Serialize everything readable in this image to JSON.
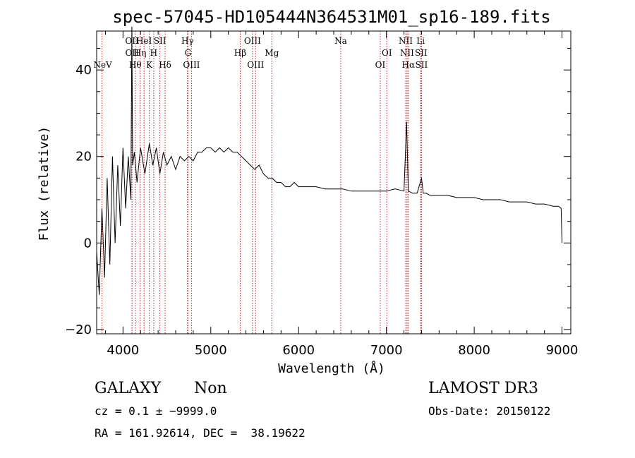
{
  "chart_data": {
    "type": "line",
    "title": "spec-57045-HD105444N364531M01_sp16-189.fits",
    "xlabel": "Wavelength (Å)",
    "ylabel": "Flux (relative)",
    "xlim": [
      3700,
      9100
    ],
    "ylim": [
      -21,
      49
    ],
    "xticks": [
      4000,
      5000,
      6000,
      7000,
      8000,
      9000
    ],
    "yticks": [
      -20,
      0,
      20,
      40
    ],
    "series": [
      {
        "name": "spectrum",
        "x": [
          3700,
          3730,
          3760,
          3790,
          3820,
          3850,
          3880,
          3910,
          3940,
          3970,
          4000,
          4030,
          4060,
          4090,
          4101,
          4110,
          4130,
          4160,
          4200,
          4250,
          4300,
          4340,
          4380,
          4420,
          4460,
          4500,
          4550,
          4600,
          4650,
          4700,
          4750,
          4800,
          4850,
          4900,
          4950,
          5000,
          5050,
          5100,
          5150,
          5200,
          5250,
          5300,
          5350,
          5400,
          5450,
          5500,
          5550,
          5600,
          5650,
          5700,
          5750,
          5800,
          5850,
          5900,
          5950,
          6000,
          6050,
          6100,
          6150,
          6200,
          6300,
          6400,
          6500,
          6600,
          6700,
          6800,
          6900,
          7000,
          7100,
          7200,
          7230,
          7250,
          7300,
          7350,
          7400,
          7420,
          7450,
          7500,
          7600,
          7700,
          7800,
          7900,
          8000,
          8100,
          8200,
          8300,
          8400,
          8500,
          8600,
          8700,
          8800,
          8900,
          8960,
          8990,
          9000
        ],
        "values": [
          -2,
          -12,
          8,
          -8,
          15,
          -5,
          20,
          0,
          18,
          4,
          22,
          8,
          20,
          10,
          50,
          18,
          21,
          14,
          22,
          16,
          23,
          18,
          22,
          16,
          21,
          18,
          20,
          17,
          20,
          19,
          20,
          19,
          21,
          21,
          22,
          22,
          21,
          22,
          21,
          22,
          21,
          21,
          20,
          19,
          18,
          17,
          18,
          16,
          15,
          15,
          14,
          14,
          13,
          13,
          14,
          13,
          13,
          13,
          13,
          13,
          12.5,
          12.5,
          12.5,
          12,
          12,
          12,
          12,
          12,
          12.5,
          12,
          28,
          12,
          11.5,
          11.5,
          15,
          11.5,
          11.5,
          11,
          11,
          11,
          10.5,
          10.5,
          10.5,
          10,
          10,
          10,
          9.5,
          9.5,
          9.5,
          9,
          9,
          8.5,
          8.5,
          8,
          0
        ]
      }
    ],
    "line_markers": [
      {
        "wavelength": 3760,
        "labels": [
          "NeV"
        ],
        "row": 3
      },
      {
        "wavelength": 4102,
        "labels": [
          "OII"
        ],
        "row": 0
      },
      {
        "wavelength": 4103,
        "labels": [
          "OII"
        ],
        "row": 1
      },
      {
        "wavelength": 4140,
        "labels": [
          "Hθ"
        ],
        "row": 2
      },
      {
        "wavelength": 4195,
        "labels": [
          "Hη"
        ],
        "row": 1
      },
      {
        "wavelength": 4240,
        "labels": [
          "HeI"
        ],
        "row": 0
      },
      {
        "wavelength": 4300,
        "labels": [
          "K"
        ],
        "row": 2
      },
      {
        "wavelength": 4350,
        "labels": [
          "H"
        ],
        "row": 1
      },
      {
        "wavelength": 4420,
        "labels": [
          "SII"
        ],
        "row": 0
      },
      {
        "wavelength": 4480,
        "labels": [
          "Hδ"
        ],
        "row": 2
      },
      {
        "wavelength": 4735,
        "labels": [
          "Hγ"
        ],
        "row": 0
      },
      {
        "wavelength": 4740,
        "labels": [
          "G"
        ],
        "row": 1
      },
      {
        "wavelength": 4780,
        "labels": [
          "OIII"
        ],
        "row": 2
      },
      {
        "wavelength": 5335,
        "labels": [
          "Hβ"
        ],
        "row": 1
      },
      {
        "wavelength": 5475,
        "labels": [
          "OIII"
        ],
        "row": 0
      },
      {
        "wavelength": 5510,
        "labels": [
          "OIII"
        ],
        "row": 2
      },
      {
        "wavelength": 5695,
        "labels": [
          "Mg"
        ],
        "row": 1
      },
      {
        "wavelength": 6480,
        "labels": [
          "Na"
        ],
        "row": 0
      },
      {
        "wavelength": 6930,
        "labels": [
          "OI"
        ],
        "row": 2
      },
      {
        "wavelength": 7005,
        "labels": [
          "OI"
        ],
        "row": 1
      },
      {
        "wavelength": 7220,
        "labels": [
          "NII"
        ],
        "row": 0
      },
      {
        "wavelength": 7235,
        "labels": [
          "NII"
        ],
        "row": 1
      },
      {
        "wavelength": 7250,
        "labels": [
          "Hα"
        ],
        "row": 2
      },
      {
        "wavelength": 7390,
        "labels": [
          "Li"
        ],
        "row": 0
      },
      {
        "wavelength": 7395,
        "labels": [
          "SII"
        ],
        "row": 1
      },
      {
        "wavelength": 7400,
        "labels": [
          "SII"
        ],
        "row": 2
      }
    ]
  },
  "info": {
    "class": "GALAXY",
    "subclass": "Non",
    "cz": "cz = 0.1 ± −9999.0",
    "radec": "RA = 161.92614, DEC =  38.19622",
    "survey": "LAMOST DR3",
    "obsdate": "Obs-Date: 20150122"
  },
  "colors": {
    "spectrum": "#000000",
    "marker": "#b22222",
    "axis": "#000000"
  }
}
